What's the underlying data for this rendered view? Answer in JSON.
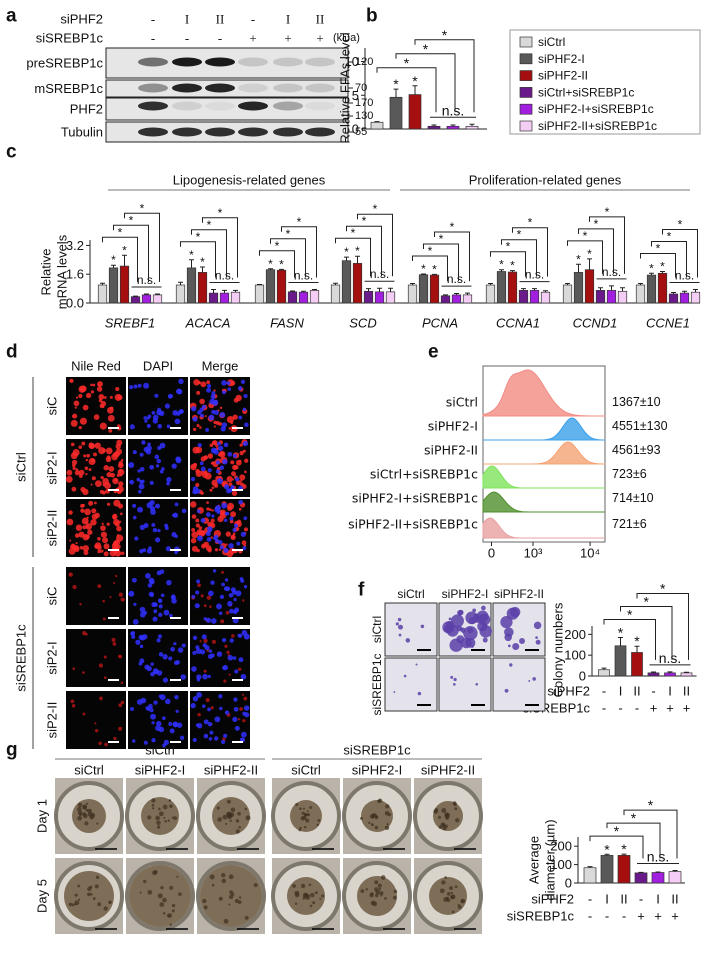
{
  "panel_labels": [
    "a",
    "b",
    "c",
    "d",
    "e",
    "f",
    "g"
  ],
  "blot": {
    "condition_rows": [
      {
        "label": "siPHF2",
        "values": [
          "-",
          "I",
          "II",
          "-",
          "I",
          "II"
        ]
      },
      {
        "label": "siSREBP1c",
        "values": [
          "-",
          "-",
          "-",
          "+",
          "+",
          "+"
        ]
      }
    ],
    "unit": "(kDa)",
    "proteins": [
      "preSREBP1c",
      "mSREBP1c",
      "PHF2",
      "Tubulin"
    ],
    "markers": [
      120,
      70,
      170,
      130,
      55
    ]
  },
  "chart_data": [
    {
      "type": "bar",
      "ylabel": "Relative FFAs level",
      "categories": [
        null
      ],
      "series": [
        {
          "name": "siCtrl",
          "color": "#d9d9d9",
          "values": [
            1.0
          ],
          "errors": [
            0.1
          ]
        },
        {
          "name": "siPHF2-I",
          "color": "#595959",
          "values": [
            4.7
          ],
          "errors": [
            1.2
          ]
        },
        {
          "name": "siPHF2-II",
          "color": "#a50f0f",
          "values": [
            5.1
          ],
          "errors": [
            1.3
          ]
        },
        {
          "name": "siCtrl+siSREBP1c",
          "color": "#6b1a8c",
          "values": [
            0.4
          ],
          "errors": [
            0.2
          ]
        },
        {
          "name": "siPHF2-I+siSREBP1c",
          "color": "#a21fe0",
          "values": [
            0.4
          ],
          "errors": [
            0.2
          ]
        },
        {
          "name": "siPHF2-II+siSREBP1c",
          "color": "#f3cdf3",
          "values": [
            0.4
          ],
          "errors": [
            0.3
          ]
        }
      ],
      "ylim": [
        0,
        12
      ],
      "yticks": [
        0,
        5,
        10
      ],
      "legend": "right",
      "significance": {
        "star": "*",
        "ns": "n.s."
      }
    },
    {
      "type": "bar",
      "ylabel": [
        "Relative",
        "mRNA levels"
      ],
      "group_headers": [
        "Lipogenesis-related genes",
        "Proliferation-related genes"
      ],
      "categories": [
        "SREBF1",
        "ACACA",
        "FASN",
        "SCD",
        "PCNA",
        "CCNA1",
        "CCND1",
        "CCNE1"
      ],
      "series": [
        {
          "color": "#d9d9d9",
          "values": [
            1.0,
            1.0,
            1.0,
            1.0,
            1.0,
            1.0,
            1.0,
            1.0
          ],
          "errors": [
            0.1,
            0.15,
            0.03,
            0.1,
            0.08,
            0.08,
            0.08,
            0.08
          ]
        },
        {
          "color": "#595959",
          "values": [
            1.95,
            1.95,
            1.85,
            2.35,
            1.57,
            1.75,
            1.7,
            1.55
          ],
          "errors": [
            0.15,
            0.45,
            0.05,
            0.2,
            0.04,
            0.1,
            0.45,
            0.1
          ]
        },
        {
          "color": "#a50f0f",
          "values": [
            2.05,
            1.7,
            1.82,
            2.2,
            1.55,
            1.72,
            1.85,
            1.65
          ],
          "errors": [
            0.6,
            0.3,
            0.05,
            0.4,
            0.04,
            0.08,
            0.6,
            0.1
          ]
        },
        {
          "color": "#6b1a8c",
          "values": [
            0.35,
            0.55,
            0.62,
            0.65,
            0.4,
            0.7,
            0.7,
            0.5
          ],
          "errors": [
            0.03,
            0.2,
            0.05,
            0.15,
            0.05,
            0.1,
            0.15,
            0.08
          ]
        },
        {
          "color": "#a21fe0",
          "values": [
            0.45,
            0.55,
            0.6,
            0.62,
            0.45,
            0.7,
            0.7,
            0.55
          ],
          "errors": [
            0.05,
            0.15,
            0.05,
            0.2,
            0.08,
            0.1,
            0.25,
            0.1
          ]
        },
        {
          "color": "#f3cdf3",
          "values": [
            0.45,
            0.6,
            0.7,
            0.62,
            0.45,
            0.6,
            0.65,
            0.6
          ],
          "errors": [
            0.05,
            0.1,
            0.05,
            0.2,
            0.1,
            0.08,
            0.2,
            0.15
          ]
        }
      ],
      "ylim": [
        0,
        3.5
      ],
      "yticks": [
        {
          "value": 0,
          "label": "0.0"
        },
        1.6,
        3.2
      ],
      "significance": {
        "star": "*",
        "ns": "n.s."
      }
    },
    {
      "type": "bar",
      "ylabel": "Colony numbers",
      "categories": [
        null,
        null,
        null,
        null,
        null,
        null
      ],
      "values": [
        30,
        145,
        113,
        15,
        15,
        15
      ],
      "errors": [
        8,
        40,
        30,
        4,
        5,
        3
      ],
      "colors": [
        "#d9d9d9",
        "#595959",
        "#a50f0f",
        "#6b1a8c",
        "#a21fe0",
        "#f3cdf3"
      ],
      "condition_rows": [
        {
          "label": "siPHF2",
          "values": [
            "-",
            "I",
            "II",
            "-",
            "I",
            "II"
          ]
        },
        {
          "label": "siSREBP1c",
          "values": [
            "-",
            "-",
            "-",
            "+",
            "+",
            "+"
          ]
        }
      ],
      "ylim": [
        0,
        240
      ],
      "yticks": [
        0,
        100,
        200
      ],
      "significance": {
        "star": "*",
        "ns": "n.s."
      }
    },
    {
      "type": "bar",
      "ylabel": [
        "Average",
        "diameter (µm)"
      ],
      "categories": [
        null,
        null,
        null,
        null,
        null,
        null
      ],
      "values": [
        83,
        150,
        150,
        55,
        57,
        62
      ],
      "errors": [
        6,
        6,
        7,
        3,
        3,
        6
      ],
      "colors": [
        "#d9d9d9",
        "#595959",
        "#a50f0f",
        "#6b1a8c",
        "#a21fe0",
        "#f3cdf3"
      ],
      "condition_rows": [
        {
          "label": "siPHF2",
          "values": [
            "-",
            "I",
            "II",
            "-",
            "I",
            "II"
          ]
        },
        {
          "label": "siSREBP1c",
          "values": [
            "-",
            "-",
            "-",
            "+",
            "+",
            "+"
          ]
        }
      ],
      "ylim": [
        0,
        250
      ],
      "yticks": [
        0,
        100,
        200
      ],
      "significance": {
        "star": "*",
        "ns": "n.s."
      }
    }
  ],
  "microscopy": {
    "columns": [
      "Nile Red",
      "DAPI",
      "Merge"
    ],
    "groups": [
      {
        "label": "siCtrl",
        "rows": [
          "siC",
          "siP2-I",
          "siP2-II"
        ]
      },
      {
        "label": "siSREBP1c",
        "rows": [
          "siC",
          "siP2-I",
          "siP2-II"
        ]
      }
    ]
  },
  "flow": {
    "samples": [
      {
        "label": "siCtrl",
        "mfi": "1367±10",
        "color": "#f28b82"
      },
      {
        "label": "siPHF2-I",
        "mfi": "4551±130",
        "color": "#3aa0e8"
      },
      {
        "label": "siPHF2-II",
        "mfi": "4561±93",
        "color": "#f4a373"
      },
      {
        "label": "siCtrl+siSREBP1c",
        "mfi": "723±6",
        "color": "#7ee35b"
      },
      {
        "label": "siPHF2-I+siSREBP1c",
        "mfi": "714±10",
        "color": "#4f8f2a"
      },
      {
        "label": "siPHF2-II+siSREBP1c",
        "mfi": "721±6",
        "color": "#e8a0a0"
      }
    ],
    "xticks": [
      0,
      {
        "value": 1000,
        "label": "10³"
      },
      {
        "value": 10000,
        "label": "10⁴"
      }
    ]
  },
  "colony_images": {
    "columns": [
      "siCtrl",
      "siPHF2-I",
      "siPHF2-II"
    ],
    "rows": [
      "siCtrl",
      "siSREBP1c"
    ]
  },
  "spheroid_images": {
    "groups": [
      {
        "label": "siCtrl",
        "columns": [
          "siCtrl",
          "siPHF2-I",
          "siPHF2-II"
        ]
      },
      {
        "label": "siSREBP1c",
        "columns": [
          "siCtrl",
          "siPHF2-I",
          "siPHF2-II"
        ]
      }
    ],
    "rows": [
      "Day 1",
      "Day 5"
    ]
  }
}
